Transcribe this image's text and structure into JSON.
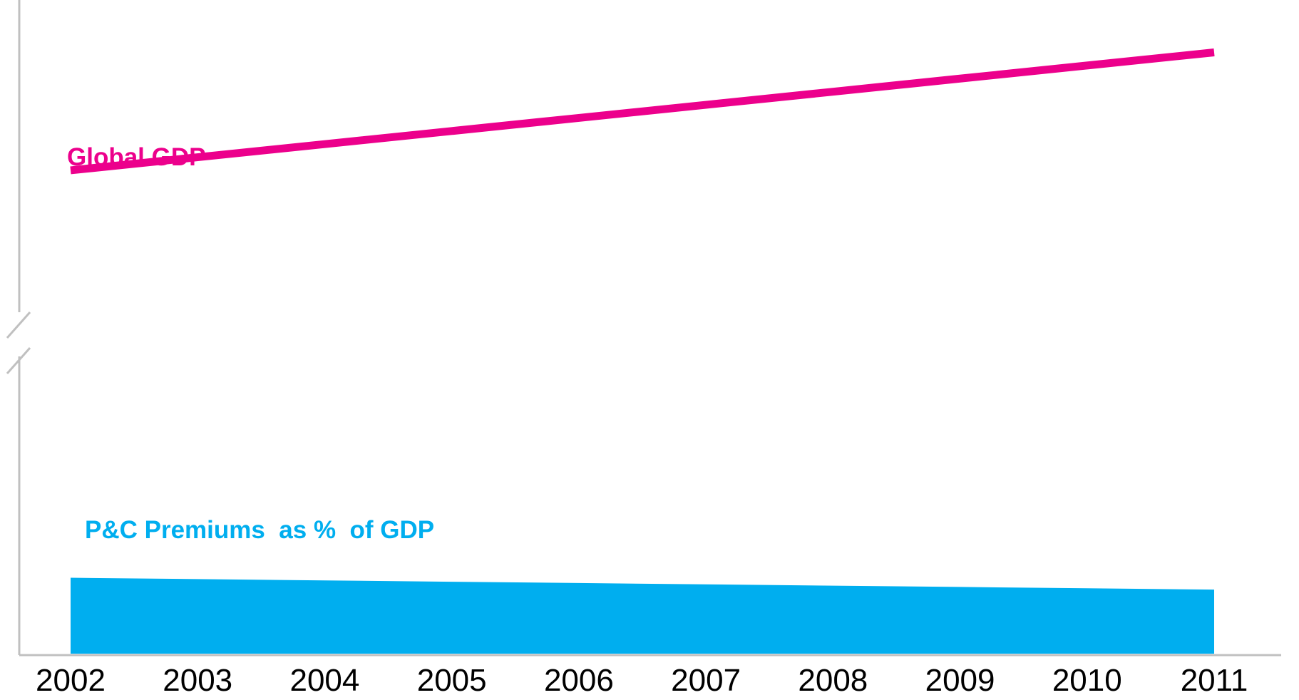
{
  "chart_data": {
    "type": "line",
    "title": "",
    "xlabel": "",
    "ylabel": "",
    "x": [
      "2002",
      "2003",
      "2004",
      "2005",
      "2006",
      "2007",
      "2008",
      "2009",
      "2010",
      "2011"
    ],
    "y_scale": "relative (no tick labels), broken y-axis",
    "y_axis_break": true,
    "grid": false,
    "legend": "none (direct labels)",
    "series": [
      {
        "name": "Global GDP",
        "kind": "line",
        "color": "#EC008C",
        "values": [
          0.74,
          0.76,
          0.78,
          0.8,
          0.82,
          0.84,
          0.86,
          0.88,
          0.9,
          0.92
        ]
      },
      {
        "name": "P&C Premiums  as %  of GDP",
        "kind": "area",
        "color": "#00AEEF",
        "values": [
          0.118,
          0.116,
          0.114,
          0.112,
          0.11,
          0.108,
          0.106,
          0.104,
          0.102,
          0.1
        ]
      }
    ]
  },
  "colors": {
    "axis": "#C0C0C0",
    "gdp": "#EC008C",
    "premiums": "#00AEEF"
  }
}
